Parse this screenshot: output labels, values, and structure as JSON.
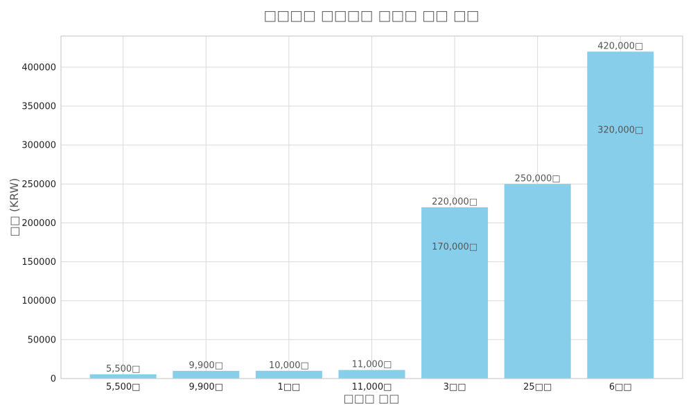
{
  "chart_data": {
    "type": "bar",
    "title": "□□□□ □□□□ □□□ □□ □□",
    "xlabel": "□□□ □□",
    "ylabel": "□□ (KRW)",
    "categories": [
      "5,500□",
      "9,900□",
      "1□□",
      "11,000□",
      "3□□",
      "25□□",
      "6□□"
    ],
    "values": [
      5500,
      9900,
      10000,
      11000,
      220000,
      250000,
      420000
    ],
    "value_labels": [
      "5,500□",
      "9,900□",
      "10,000□",
      "11,000□",
      "220,000□",
      "250,000□",
      "420,000□"
    ],
    "secondary_values": [
      null,
      null,
      null,
      null,
      170000,
      null,
      320000
    ],
    "secondary_labels": [
      "",
      "",
      "",
      "",
      "170,000□",
      "",
      "320,000□"
    ],
    "ylim": [
      0,
      440000
    ],
    "yticks": [
      0,
      50000,
      100000,
      150000,
      200000,
      250000,
      300000,
      350000,
      400000
    ],
    "ytick_labels": [
      "0",
      "50000",
      "100000",
      "150000",
      "200000",
      "250000",
      "300000",
      "350000",
      "400000"
    ],
    "grid": true,
    "colors": {
      "bar": "#87CEEB",
      "grid": "#D9D9D9",
      "axis": "#CCCCCC",
      "text": "#222222",
      "label": "#555555"
    }
  }
}
